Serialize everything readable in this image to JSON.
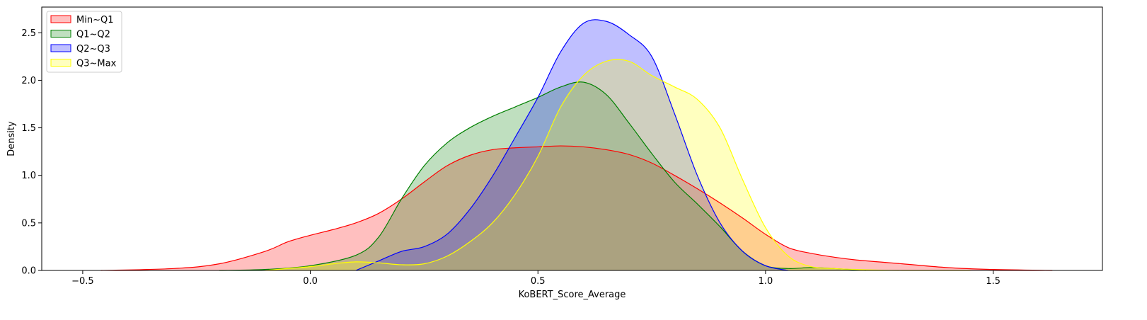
{
  "chart_data": {
    "type": "area",
    "title": "",
    "xlabel": "KoBERT_Score_Average",
    "ylabel": "Density",
    "xlim": [
      -0.59,
      1.74
    ],
    "ylim": [
      0,
      2.77
    ],
    "x_ticks": [
      -0.5,
      0.0,
      0.5,
      1.0,
      1.5
    ],
    "x_tick_labels": [
      "−0.5",
      "0.0",
      "0.5",
      "1.0",
      "1.5"
    ],
    "y_ticks": [
      0.0,
      0.5,
      1.0,
      1.5,
      2.0,
      2.5
    ],
    "y_tick_labels": [
      "0.0",
      "0.5",
      "1.0",
      "1.5",
      "2.0",
      "2.5"
    ],
    "grid": false,
    "legend_position": "top-left",
    "series": [
      {
        "name": "Min~Q1",
        "color": "#ff0000",
        "x": [
          -0.46,
          -0.3,
          -0.2,
          -0.1,
          -0.05,
          0.0,
          0.05,
          0.1,
          0.15,
          0.2,
          0.25,
          0.3,
          0.35,
          0.4,
          0.45,
          0.5,
          0.55,
          0.6,
          0.65,
          0.7,
          0.75,
          0.8,
          0.85,
          0.9,
          0.95,
          1.0,
          1.05,
          1.1,
          1.15,
          1.2,
          1.3,
          1.4,
          1.5,
          1.63
        ],
        "y": [
          0.0,
          0.02,
          0.07,
          0.2,
          0.3,
          0.37,
          0.43,
          0.5,
          0.6,
          0.75,
          0.93,
          1.1,
          1.21,
          1.27,
          1.29,
          1.3,
          1.31,
          1.3,
          1.27,
          1.22,
          1.13,
          1.0,
          0.86,
          0.71,
          0.55,
          0.38,
          0.24,
          0.18,
          0.14,
          0.11,
          0.07,
          0.03,
          0.01,
          0.0
        ]
      },
      {
        "name": "Q1~Q2",
        "color": "#008000",
        "x": [
          -0.2,
          -0.1,
          0.0,
          0.1,
          0.15,
          0.2,
          0.25,
          0.3,
          0.35,
          0.4,
          0.45,
          0.5,
          0.55,
          0.6,
          0.65,
          0.7,
          0.75,
          0.8,
          0.85,
          0.9,
          0.95,
          1.0,
          1.05,
          1.1,
          1.15,
          1.22
        ],
        "y": [
          0.0,
          0.01,
          0.05,
          0.16,
          0.35,
          0.75,
          1.1,
          1.34,
          1.5,
          1.62,
          1.72,
          1.82,
          1.93,
          1.98,
          1.85,
          1.55,
          1.23,
          0.93,
          0.7,
          0.46,
          0.2,
          0.05,
          0.02,
          0.03,
          0.02,
          0.0
        ]
      },
      {
        "name": "Q2~Q3",
        "color": "#0000ff",
        "x": [
          0.1,
          0.15,
          0.2,
          0.25,
          0.3,
          0.35,
          0.4,
          0.45,
          0.5,
          0.55,
          0.6,
          0.65,
          0.7,
          0.75,
          0.8,
          0.85,
          0.9,
          0.95,
          1.0,
          1.05
        ],
        "y": [
          0.0,
          0.1,
          0.2,
          0.25,
          0.38,
          0.64,
          0.99,
          1.4,
          1.82,
          2.3,
          2.6,
          2.62,
          2.48,
          2.25,
          1.65,
          1.0,
          0.5,
          0.2,
          0.05,
          0.0
        ]
      },
      {
        "name": "Q3~Max",
        "color": "#ffff00",
        "x": [
          -0.1,
          0.0,
          0.05,
          0.1,
          0.15,
          0.2,
          0.25,
          0.3,
          0.35,
          0.4,
          0.45,
          0.5,
          0.55,
          0.6,
          0.65,
          0.7,
          0.75,
          0.8,
          0.85,
          0.9,
          0.95,
          1.0,
          1.05,
          1.1,
          1.15,
          1.2,
          1.3,
          1.45
        ],
        "y": [
          0.0,
          0.04,
          0.07,
          0.09,
          0.08,
          0.06,
          0.07,
          0.15,
          0.3,
          0.5,
          0.8,
          1.2,
          1.72,
          2.05,
          2.2,
          2.2,
          2.05,
          1.93,
          1.8,
          1.5,
          0.95,
          0.45,
          0.15,
          0.04,
          0.02,
          0.01,
          0.0,
          0.0
        ]
      }
    ]
  }
}
